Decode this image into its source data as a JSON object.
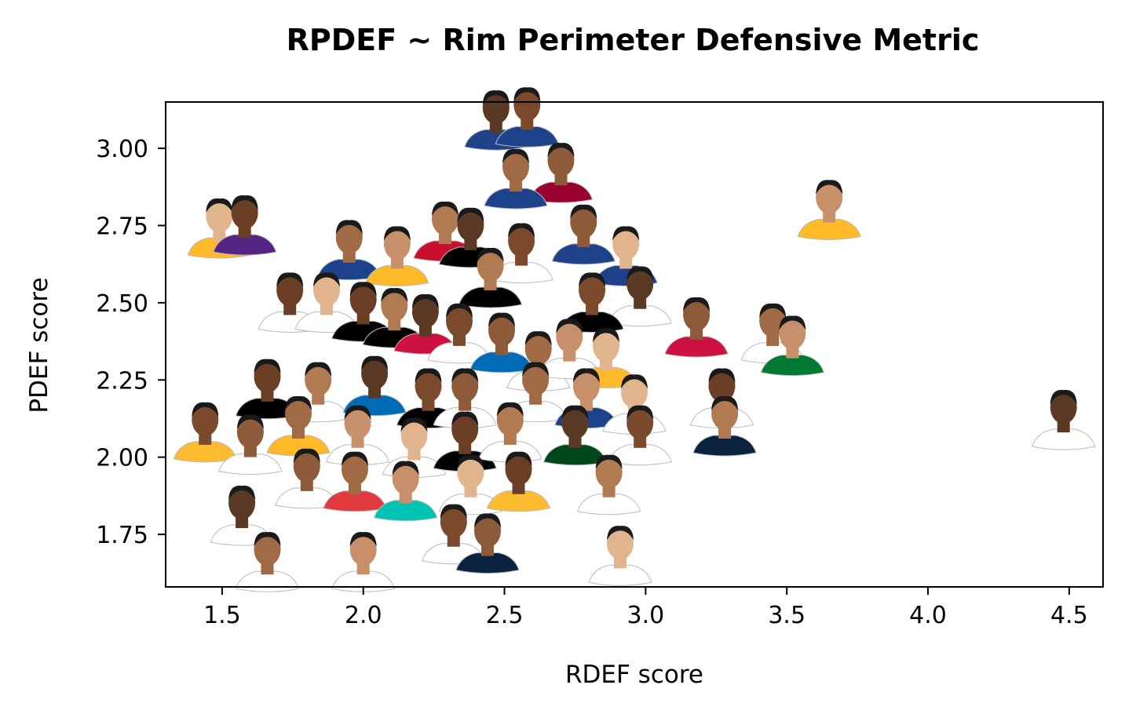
{
  "chart_data": {
    "type": "scatter",
    "title": "RPDEF ~ Rim Perimeter Defensive Metric",
    "xlabel": "RDEF score",
    "ylabel": "PDEF score",
    "xlim": [
      1.3,
      4.62
    ],
    "ylim": [
      1.58,
      3.15
    ],
    "xticks": [
      "1.5",
      "2.0",
      "2.5",
      "3.0",
      "3.5",
      "4.0",
      "4.5"
    ],
    "yticks": [
      "1.75",
      "2.00",
      "2.25",
      "2.50",
      "2.75",
      "3.00"
    ],
    "grid": false,
    "marker": "player headshot",
    "points": [
      {
        "x": 2.47,
        "y": 3.04,
        "jersey": "#1d428a"
      },
      {
        "x": 2.58,
        "y": 3.05,
        "jersey": "#1d428a"
      },
      {
        "x": 2.7,
        "y": 2.87,
        "jersey": "#98002e"
      },
      {
        "x": 2.54,
        "y": 2.85,
        "jersey": "#1d428a"
      },
      {
        "x": 3.65,
        "y": 2.75,
        "jersey": "#fdb927"
      },
      {
        "x": 1.49,
        "y": 2.69,
        "jersey": "#fdb927"
      },
      {
        "x": 1.58,
        "y": 2.7,
        "jersey": "#552583"
      },
      {
        "x": 2.29,
        "y": 2.68,
        "jersey": "#c8102e"
      },
      {
        "x": 2.38,
        "y": 2.66,
        "jersey": "#000000"
      },
      {
        "x": 2.56,
        "y": 2.61,
        "jersey": "#ffffff"
      },
      {
        "x": 2.78,
        "y": 2.67,
        "jersey": "#1d428a"
      },
      {
        "x": 1.95,
        "y": 2.62,
        "jersey": "#1d428a"
      },
      {
        "x": 2.12,
        "y": 2.6,
        "jersey": "#fdb927"
      },
      {
        "x": 2.93,
        "y": 2.6,
        "jersey": "#1d428a"
      },
      {
        "x": 1.74,
        "y": 2.45,
        "jersey": "#ffffff"
      },
      {
        "x": 2.45,
        "y": 2.53,
        "jersey": "#000000"
      },
      {
        "x": 2.98,
        "y": 2.47,
        "jersey": "#ffffff"
      },
      {
        "x": 2.81,
        "y": 2.45,
        "jersey": "#000000"
      },
      {
        "x": 3.18,
        "y": 2.37,
        "jersey": "#ce1141"
      },
      {
        "x": 3.45,
        "y": 2.35,
        "jersey": "#ffffff"
      },
      {
        "x": 3.52,
        "y": 2.31,
        "jersey": "#007a33"
      },
      {
        "x": 1.87,
        "y": 2.45,
        "jersey": "#ffffff"
      },
      {
        "x": 2.0,
        "y": 2.42,
        "jersey": "#000000"
      },
      {
        "x": 2.11,
        "y": 2.4,
        "jersey": "#000000"
      },
      {
        "x": 2.22,
        "y": 2.38,
        "jersey": "#ce1141"
      },
      {
        "x": 2.34,
        "y": 2.35,
        "jersey": "#ffffff"
      },
      {
        "x": 2.49,
        "y": 2.32,
        "jersey": "#006bb6"
      },
      {
        "x": 2.62,
        "y": 2.26,
        "jersey": "#ffffff"
      },
      {
        "x": 2.73,
        "y": 2.3,
        "jersey": "#ffffff"
      },
      {
        "x": 2.86,
        "y": 2.27,
        "jersey": "#fdb927"
      },
      {
        "x": 1.66,
        "y": 2.17,
        "jersey": "#000000"
      },
      {
        "x": 1.84,
        "y": 2.16,
        "jersey": "#ffffff"
      },
      {
        "x": 2.04,
        "y": 2.18,
        "jersey": "#006bb6"
      },
      {
        "x": 2.23,
        "y": 2.14,
        "jersey": "#000000"
      },
      {
        "x": 2.36,
        "y": 2.14,
        "jersey": "#ffffff"
      },
      {
        "x": 2.61,
        "y": 2.16,
        "jersey": "#ffffff"
      },
      {
        "x": 2.79,
        "y": 2.14,
        "jersey": "#1d428a"
      },
      {
        "x": 2.96,
        "y": 2.12,
        "jersey": "#ffffff"
      },
      {
        "x": 3.27,
        "y": 2.14,
        "jersey": "#ffffff"
      },
      {
        "x": 3.28,
        "y": 2.05,
        "jersey": "#0c2340"
      },
      {
        "x": 4.48,
        "y": 2.07,
        "jersey": "#ffffff"
      },
      {
        "x": 1.44,
        "y": 2.03,
        "jersey": "#fdbb30"
      },
      {
        "x": 1.6,
        "y": 1.99,
        "jersey": "#ffffff"
      },
      {
        "x": 1.77,
        "y": 2.05,
        "jersey": "#fdb927"
      },
      {
        "x": 1.98,
        "y": 2.02,
        "jersey": "#ffffff"
      },
      {
        "x": 2.18,
        "y": 1.98,
        "jersey": "#ffffff"
      },
      {
        "x": 2.36,
        "y": 2.0,
        "jersey": "#000000"
      },
      {
        "x": 2.52,
        "y": 2.03,
        "jersey": "#ffffff"
      },
      {
        "x": 2.75,
        "y": 2.02,
        "jersey": "#00471b"
      },
      {
        "x": 2.98,
        "y": 2.02,
        "jersey": "#ffffff"
      },
      {
        "x": 1.8,
        "y": 1.88,
        "jersey": "#ffffff"
      },
      {
        "x": 1.97,
        "y": 1.87,
        "jersey": "#e03a3e"
      },
      {
        "x": 2.15,
        "y": 1.84,
        "jersey": "#00c4b3"
      },
      {
        "x": 2.38,
        "y": 1.86,
        "jersey": "#ffffff"
      },
      {
        "x": 2.55,
        "y": 1.87,
        "jersey": "#fdbb30"
      },
      {
        "x": 2.87,
        "y": 1.86,
        "jersey": "#ffffff"
      },
      {
        "x": 1.57,
        "y": 1.76,
        "jersey": "#ffffff"
      },
      {
        "x": 2.32,
        "y": 1.7,
        "jersey": "#ffffff"
      },
      {
        "x": 2.44,
        "y": 1.67,
        "jersey": "#0c2340"
      },
      {
        "x": 1.66,
        "y": 1.61,
        "jersey": "#ffffff"
      },
      {
        "x": 2.0,
        "y": 1.61,
        "jersey": "#ffffff"
      },
      {
        "x": 2.91,
        "y": 1.63,
        "jersey": "#ffffff"
      }
    ]
  }
}
